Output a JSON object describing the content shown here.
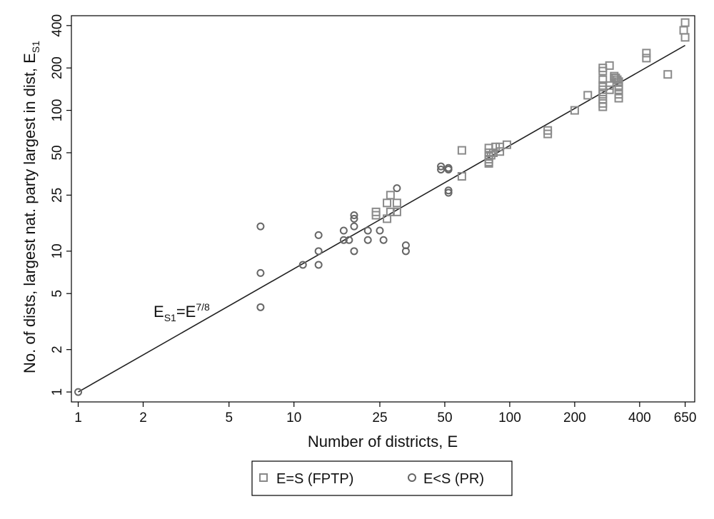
{
  "chart_data": {
    "type": "scatter",
    "x_scale": "log",
    "y_scale": "log",
    "xlim": [
      0.93,
      720
    ],
    "ylim": [
      0.85,
      470
    ],
    "xlabel": "Number of districts, E",
    "ylabel": {
      "main": "No. of dists, largest nat. party largest in dist, E",
      "sub": "S1"
    },
    "x_ticks": [
      {
        "value": 1,
        "label": "1"
      },
      {
        "value": 2,
        "label": "2"
      },
      {
        "value": 5,
        "label": "5"
      },
      {
        "value": 10,
        "label": "10"
      },
      {
        "value": 25,
        "label": "25"
      },
      {
        "value": 50,
        "label": "50"
      },
      {
        "value": 100,
        "label": "100"
      },
      {
        "value": 200,
        "label": "200"
      },
      {
        "value": 400,
        "label": "400"
      },
      {
        "value": 650,
        "label": "650"
      }
    ],
    "y_ticks": [
      {
        "value": 1,
        "label": "1"
      },
      {
        "value": 2,
        "label": "2"
      },
      {
        "value": 5,
        "label": "5"
      },
      {
        "value": 10,
        "label": "10"
      },
      {
        "value": 25,
        "label": "25"
      },
      {
        "value": 50,
        "label": "50"
      },
      {
        "value": 100,
        "label": "100"
      },
      {
        "value": 200,
        "label": "200"
      },
      {
        "value": 400,
        "label": "400"
      }
    ],
    "grid": false,
    "legend_position": "bottom",
    "series": [
      {
        "name": "E=S (FPTP)",
        "marker": "square",
        "points": [
          [
            24,
            19
          ],
          [
            24,
            18
          ],
          [
            27,
            22
          ],
          [
            28,
            25
          ],
          [
            27,
            17
          ],
          [
            28,
            19
          ],
          [
            30,
            22
          ],
          [
            30,
            19
          ],
          [
            60,
            34
          ],
          [
            60,
            52
          ],
          [
            80,
            54
          ],
          [
            80,
            50
          ],
          [
            80,
            47
          ],
          [
            80,
            45
          ],
          [
            80,
            43
          ],
          [
            80,
            42
          ],
          [
            82,
            48
          ],
          [
            84,
            50
          ],
          [
            86,
            55
          ],
          [
            90,
            55
          ],
          [
            90,
            51
          ],
          [
            97,
            57
          ],
          [
            150,
            72
          ],
          [
            150,
            68
          ],
          [
            200,
            100
          ],
          [
            230,
            128
          ],
          [
            270,
            200
          ],
          [
            270,
            190
          ],
          [
            270,
            165
          ],
          [
            270,
            150
          ],
          [
            270,
            140
          ],
          [
            270,
            130
          ],
          [
            270,
            120
          ],
          [
            270,
            112
          ],
          [
            270,
            106
          ],
          [
            290,
            208
          ],
          [
            290,
            150
          ],
          [
            290,
            140
          ],
          [
            305,
            175
          ],
          [
            305,
            170
          ],
          [
            310,
            170
          ],
          [
            315,
            165
          ],
          [
            320,
            160
          ],
          [
            320,
            150
          ],
          [
            320,
            140
          ],
          [
            320,
            130
          ],
          [
            320,
            122
          ],
          [
            430,
            255
          ],
          [
            430,
            235
          ],
          [
            540,
            180
          ],
          [
            640,
            370
          ],
          [
            650,
            420
          ],
          [
            650,
            330
          ]
        ]
      },
      {
        "name": "E<S (PR)",
        "marker": "circle",
        "points": [
          [
            1,
            1
          ],
          [
            7,
            4
          ],
          [
            7,
            7
          ],
          [
            7,
            15
          ],
          [
            11,
            8
          ],
          [
            13,
            8
          ],
          [
            13,
            10
          ],
          [
            13,
            13
          ],
          [
            17,
            12
          ],
          [
            17,
            14
          ],
          [
            18,
            12
          ],
          [
            19,
            15
          ],
          [
            19,
            17
          ],
          [
            19,
            18
          ],
          [
            19,
            10
          ],
          [
            22,
            14
          ],
          [
            22,
            12
          ],
          [
            25,
            14
          ],
          [
            26,
            12
          ],
          [
            30,
            28
          ],
          [
            33,
            10
          ],
          [
            33,
            11
          ],
          [
            48,
            40
          ],
          [
            48,
            38
          ],
          [
            52,
            38
          ],
          [
            52,
            39
          ],
          [
            52,
            27
          ],
          [
            52,
            26
          ]
        ]
      }
    ],
    "fit_line": {
      "label_main": "E",
      "label_sub": "S1",
      "label_eq": "=E",
      "label_sup": "7/8",
      "exponent": 0.875,
      "x_range": [
        1,
        650
      ]
    }
  }
}
